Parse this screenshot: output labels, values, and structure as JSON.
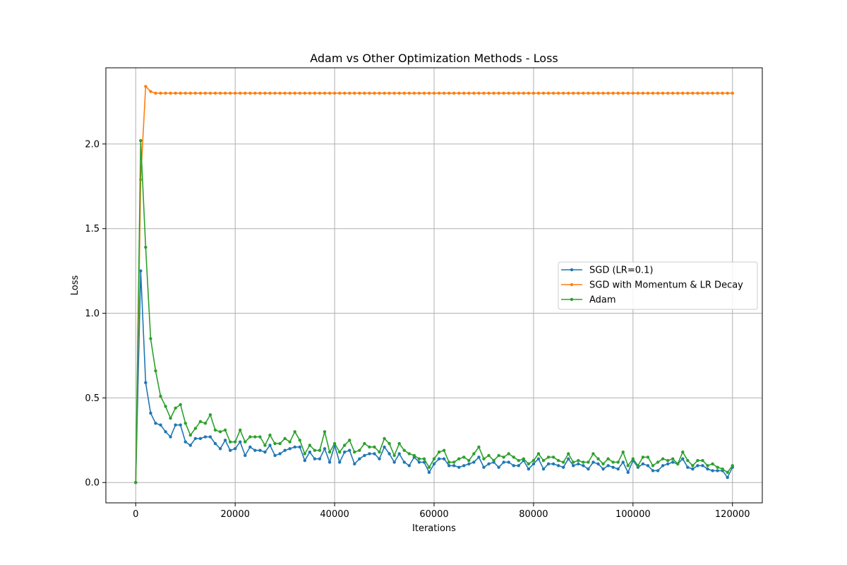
{
  "chart_data": {
    "type": "line",
    "title": "Adam vs Other Optimization Methods - Loss",
    "xlabel": "Iterations",
    "ylabel": "Loss",
    "xlim": [
      -6000,
      126000
    ],
    "ylim": [
      -0.12,
      2.45
    ],
    "xticks": [
      0,
      20000,
      40000,
      60000,
      80000,
      100000,
      120000
    ],
    "xtick_labels": [
      "0",
      "20000",
      "40000",
      "60000",
      "80000",
      "100000",
      "120000"
    ],
    "yticks": [
      0.0,
      0.5,
      1.0,
      1.5,
      2.0
    ],
    "ytick_labels": [
      "0.0",
      "0.5",
      "1.0",
      "1.5",
      "2.0"
    ],
    "grid": true,
    "legend_position": "center-right",
    "x_start": 0,
    "x_step": 1000,
    "series": [
      {
        "name": "SGD (LR=0.1)",
        "color": "#1f77b4",
        "values": [
          0.0,
          1.25,
          0.59,
          0.41,
          0.35,
          0.34,
          0.3,
          0.27,
          0.34,
          0.34,
          0.24,
          0.22,
          0.26,
          0.26,
          0.27,
          0.27,
          0.23,
          0.2,
          0.25,
          0.19,
          0.2,
          0.24,
          0.16,
          0.21,
          0.19,
          0.19,
          0.18,
          0.22,
          0.16,
          0.17,
          0.19,
          0.2,
          0.21,
          0.21,
          0.13,
          0.18,
          0.14,
          0.14,
          0.2,
          0.12,
          0.22,
          0.12,
          0.18,
          0.19,
          0.11,
          0.14,
          0.16,
          0.17,
          0.17,
          0.14,
          0.21,
          0.17,
          0.12,
          0.17,
          0.12,
          0.1,
          0.15,
          0.12,
          0.12,
          0.06,
          0.11,
          0.14,
          0.14,
          0.1,
          0.1,
          0.09,
          0.1,
          0.11,
          0.12,
          0.15,
          0.09,
          0.11,
          0.12,
          0.09,
          0.12,
          0.12,
          0.1,
          0.1,
          0.13,
          0.08,
          0.11,
          0.14,
          0.08,
          0.11,
          0.11,
          0.1,
          0.09,
          0.14,
          0.1,
          0.11,
          0.1,
          0.08,
          0.12,
          0.11,
          0.08,
          0.1,
          0.09,
          0.08,
          0.12,
          0.06,
          0.13,
          0.09,
          0.11,
          0.1,
          0.07,
          0.07,
          0.1,
          0.11,
          0.12,
          0.11,
          0.14,
          0.09,
          0.08,
          0.1,
          0.1,
          0.08,
          0.07,
          0.07,
          0.07,
          0.03,
          0.09
        ]
      },
      {
        "name": "SGD with Momentum & LR Decay",
        "color": "#ff7f0e",
        "values": [
          0.0,
          1.79,
          2.34,
          2.31,
          2.3,
          2.3,
          2.3,
          2.3,
          2.3,
          2.3,
          2.3,
          2.3,
          2.3,
          2.3,
          2.3,
          2.3,
          2.3,
          2.3,
          2.3,
          2.3,
          2.3,
          2.3,
          2.3,
          2.3,
          2.3,
          2.3,
          2.3,
          2.3,
          2.3,
          2.3,
          2.3,
          2.3,
          2.3,
          2.3,
          2.3,
          2.3,
          2.3,
          2.3,
          2.3,
          2.3,
          2.3,
          2.3,
          2.3,
          2.3,
          2.3,
          2.3,
          2.3,
          2.3,
          2.3,
          2.3,
          2.3,
          2.3,
          2.3,
          2.3,
          2.3,
          2.3,
          2.3,
          2.3,
          2.3,
          2.3,
          2.3,
          2.3,
          2.3,
          2.3,
          2.3,
          2.3,
          2.3,
          2.3,
          2.3,
          2.3,
          2.3,
          2.3,
          2.3,
          2.3,
          2.3,
          2.3,
          2.3,
          2.3,
          2.3,
          2.3,
          2.3,
          2.3,
          2.3,
          2.3,
          2.3,
          2.3,
          2.3,
          2.3,
          2.3,
          2.3,
          2.3,
          2.3,
          2.3,
          2.3,
          2.3,
          2.3,
          2.3,
          2.3,
          2.3,
          2.3,
          2.3,
          2.3,
          2.3,
          2.3,
          2.3,
          2.3,
          2.3,
          2.3,
          2.3,
          2.3,
          2.3,
          2.3,
          2.3,
          2.3,
          2.3,
          2.3,
          2.3,
          2.3,
          2.3,
          2.3,
          2.3
        ]
      },
      {
        "name": "Adam",
        "color": "#2ca02c",
        "values": [
          0.0,
          2.02,
          1.39,
          0.85,
          0.66,
          0.51,
          0.45,
          0.38,
          0.44,
          0.46,
          0.35,
          0.28,
          0.32,
          0.36,
          0.35,
          0.4,
          0.31,
          0.3,
          0.31,
          0.24,
          0.24,
          0.31,
          0.24,
          0.27,
          0.27,
          0.27,
          0.22,
          0.28,
          0.23,
          0.23,
          0.26,
          0.24,
          0.3,
          0.25,
          0.17,
          0.22,
          0.19,
          0.19,
          0.3,
          0.18,
          0.23,
          0.18,
          0.22,
          0.25,
          0.18,
          0.19,
          0.23,
          0.21,
          0.21,
          0.18,
          0.26,
          0.23,
          0.16,
          0.23,
          0.19,
          0.17,
          0.16,
          0.14,
          0.14,
          0.09,
          0.14,
          0.18,
          0.19,
          0.12,
          0.12,
          0.14,
          0.15,
          0.13,
          0.17,
          0.21,
          0.14,
          0.16,
          0.13,
          0.16,
          0.15,
          0.17,
          0.15,
          0.13,
          0.14,
          0.11,
          0.13,
          0.17,
          0.13,
          0.15,
          0.15,
          0.13,
          0.12,
          0.17,
          0.12,
          0.13,
          0.12,
          0.12,
          0.17,
          0.14,
          0.11,
          0.14,
          0.12,
          0.12,
          0.18,
          0.1,
          0.14,
          0.1,
          0.15,
          0.15,
          0.1,
          0.12,
          0.14,
          0.13,
          0.14,
          0.11,
          0.18,
          0.13,
          0.1,
          0.13,
          0.13,
          0.1,
          0.11,
          0.09,
          0.08,
          0.06,
          0.1
        ]
      }
    ]
  }
}
